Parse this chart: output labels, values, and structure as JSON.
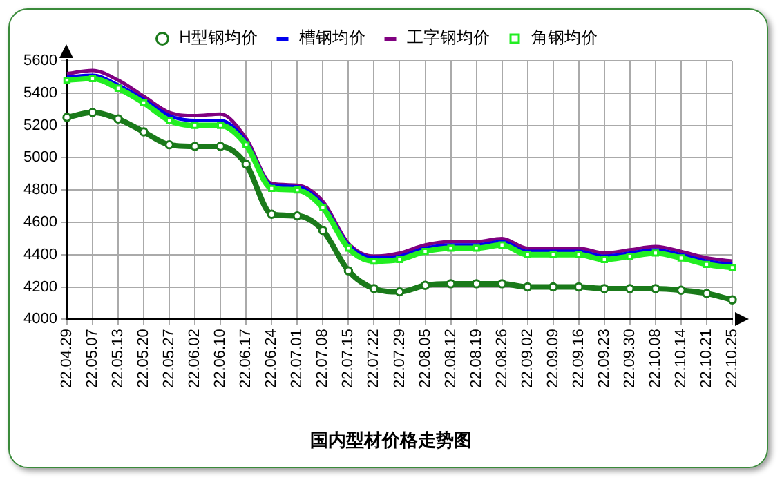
{
  "chart_data": {
    "type": "line",
    "title": "国内型材价格走势图",
    "categories": [
      "22.04.29",
      "22.05.07",
      "22.05.13",
      "22.05.20",
      "22.05.27",
      "22.06.02",
      "22.06.10",
      "22.06.17",
      "22.06.24",
      "22.07.01",
      "22.07.08",
      "22.07.15",
      "22.07.22",
      "22.07.29",
      "22.08.05",
      "22.08.12",
      "22.08.19",
      "22.08.26",
      "22.09.02",
      "22.09.09",
      "22.09.16",
      "22.09.23",
      "22.09.30",
      "22.10.08",
      "22.10.14",
      "22.10.21",
      "22.10.25"
    ],
    "series": [
      {
        "name": "H型钢均价",
        "color": "#1a7a1a",
        "marker": "circle",
        "values": [
          5250,
          5280,
          5240,
          5160,
          5080,
          5070,
          5070,
          4960,
          4650,
          4640,
          4550,
          4300,
          4190,
          4170,
          4210,
          4220,
          4220,
          4220,
          4200,
          4200,
          4200,
          4190,
          4190,
          4190,
          4180,
          4160,
          4120
        ]
      },
      {
        "name": "槽钢均价",
        "color": "#0000ee",
        "marker": "none",
        "values": [
          5500,
          5510,
          5450,
          5360,
          5260,
          5230,
          5230,
          5100,
          4830,
          4820,
          4710,
          4460,
          4380,
          4390,
          4440,
          4460,
          4460,
          4480,
          4420,
          4420,
          4420,
          4390,
          4410,
          4430,
          4400,
          4360,
          4340
        ]
      },
      {
        "name": "工字钢均价",
        "color": "#800080",
        "marker": "none",
        "values": [
          5520,
          5540,
          5480,
          5380,
          5280,
          5260,
          5270,
          5120,
          4840,
          4830,
          4730,
          4470,
          4390,
          4410,
          4460,
          4480,
          4480,
          4500,
          4440,
          4440,
          4440,
          4410,
          4430,
          4450,
          4420,
          4380,
          4360
        ]
      },
      {
        "name": "角钢均价",
        "color": "#22ee22",
        "marker": "square",
        "values": [
          5480,
          5490,
          5430,
          5340,
          5230,
          5200,
          5200,
          5080,
          4810,
          4800,
          4690,
          4440,
          4360,
          4370,
          4420,
          4440,
          4440,
          4460,
          4400,
          4400,
          4400,
          4370,
          4390,
          4410,
          4380,
          4340,
          4320
        ]
      }
    ],
    "ylim": [
      4000,
      5600
    ],
    "yticks": [
      4000,
      4200,
      4400,
      4600,
      4800,
      5000,
      5200,
      5400,
      5600
    ],
    "grid": true,
    "legend": "top"
  }
}
